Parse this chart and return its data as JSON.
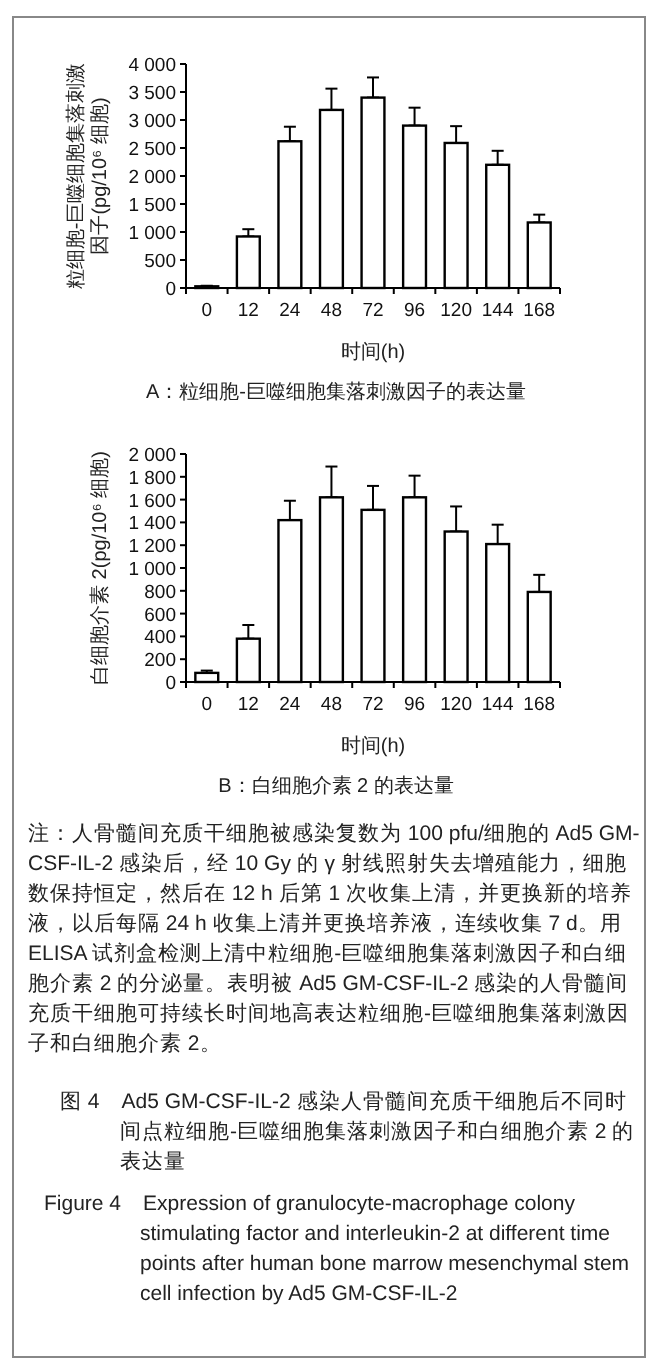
{
  "chart_data": [
    {
      "type": "bar",
      "title": "A：粒细胞-巨噬细胞集落刺激因子的表达量",
      "xlabel": "时间(h)",
      "ylabel": "粒细胞-巨噬细胞集落刺激因子(pg/10⁶ 细胞)",
      "categories": [
        "0",
        "12",
        "24",
        "48",
        "72",
        "96",
        "120",
        "144",
        "168"
      ],
      "series": [
        {
          "color": "#ffffff",
          "values": [
            30,
            920,
            2620,
            3180,
            3400,
            2900,
            2590,
            2200,
            1170
          ],
          "errors": [
            [
              30,
              40
            ],
            [
              920,
              1050
            ],
            [
              2620,
              2880
            ],
            [
              3180,
              3560
            ],
            [
              3400,
              3760
            ],
            [
              2900,
              3220
            ],
            [
              2590,
              2890
            ],
            [
              2200,
              2450
            ],
            [
              1170,
              1310
            ]
          ]
        }
      ],
      "ylim": [
        0,
        4000
      ],
      "yticks": [
        0,
        500,
        {
          "value": 1000,
          "label": "1 000"
        },
        {
          "value": 1500,
          "label": "1 500"
        },
        {
          "value": 2000,
          "label": "2 000"
        },
        {
          "value": 2500,
          "label": "2 500"
        },
        {
          "value": 3000,
          "label": "3 000"
        },
        {
          "value": 3500,
          "label": "3 500"
        },
        {
          "value": 4000,
          "label": "4 000"
        }
      ]
    },
    {
      "type": "bar",
      "title": "B：白细胞介素 2 的表达量",
      "xlabel": "时间(h)",
      "ylabel": "白细胞介素 2(pg/10⁶ 细胞)",
      "categories": [
        "0",
        "12",
        "24",
        "48",
        "72",
        "96",
        "120",
        "144",
        "168"
      ],
      "series": [
        {
          "color": "#ffffff",
          "values": [
            80,
            380,
            1420,
            1620,
            1510,
            1620,
            1320,
            1210,
            790
          ],
          "errors": [
            [
              80,
              100
            ],
            [
              380,
              500
            ],
            [
              1420,
              1590
            ],
            [
              1620,
              1890
            ],
            [
              1510,
              1720
            ],
            [
              1620,
              1810
            ],
            [
              1320,
              1540
            ],
            [
              1210,
              1380
            ],
            [
              790,
              940
            ]
          ]
        }
      ],
      "ylim": [
        0,
        2000
      ],
      "yticks": [
        0,
        200,
        400,
        600,
        800,
        {
          "value": 1000,
          "label": "1 000"
        },
        {
          "value": 1200,
          "label": "1 200"
        },
        {
          "value": 1400,
          "label": "1 400"
        },
        {
          "value": 1600,
          "label": "1 600"
        },
        {
          "value": 1800,
          "label": "1 800"
        },
        {
          "value": 2000,
          "label": "2 000"
        }
      ],
      "annotations": [
        "注：人骨髓间充质干细胞被感染复数为 100 pfu/细胞的 Ad5 GM-CSF-IL-2 感染后，经 10 Gy 的 γ 射线照射失去增殖能力，细胞数保持恒定，然后在 12 h 后第 1 次收集上清，并更换新的培养液，以后每隔 24 h 收集上清并更换培养液，连续收集 7 d。用 ELISA 试剂盒检测上清中粒细胞-巨噬细胞集落刺激因子和白细胞介素 2 的分泌量。表明被 Ad5 GM-CSF-IL-2 感染的人骨髓间充质干细胞可持续长时间地高表达粒细胞-巨噬细胞集落刺激因子和白细胞介素 2。",
        "图 4　Ad5 GM-CSF-IL-2 感染人骨髓间充质干细胞后不同时间点粒细胞-巨噬细胞集落刺激因子和白细胞介素 2 的表达量",
        "Figure 4　Expression of granulocyte-macrophage colony stimulating factor and interleukin-2 at different time points after human bone marrow mesenchymal stem cell infection by Ad5 GM-CSF-IL-2"
      ]
    }
  ]
}
